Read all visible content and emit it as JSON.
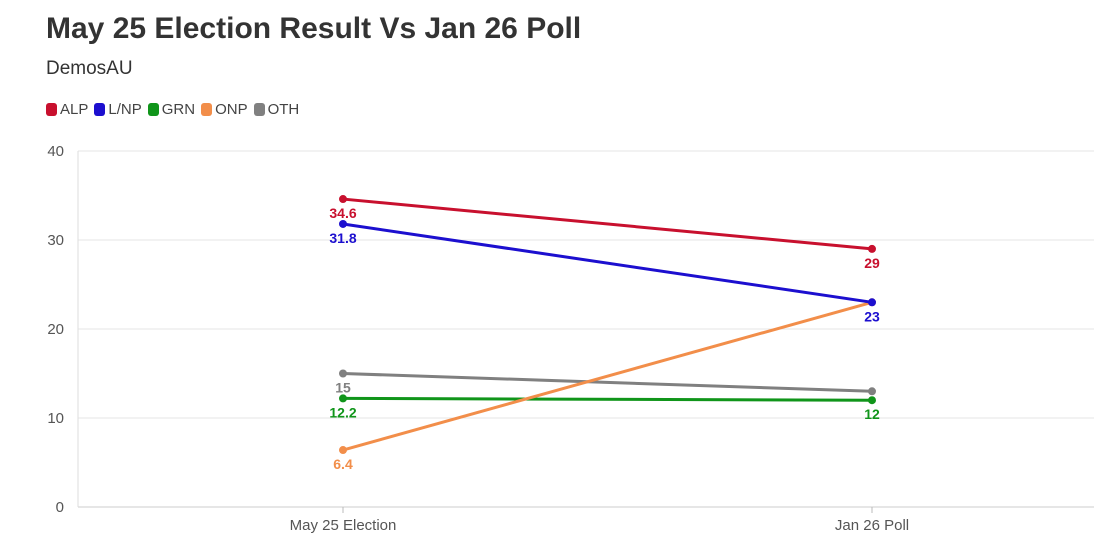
{
  "header": {
    "title": "May 25 Election Result Vs Jan 26 Poll",
    "subtitle": "DemosAU"
  },
  "chart_data": {
    "type": "line",
    "title": "May 25 Election Result Vs Jan 26 Poll",
    "subtitle": "DemosAU",
    "categories": [
      "May 25 Election",
      "Jan 26 Poll"
    ],
    "xlabel": "",
    "ylabel": "",
    "ylim": [
      0,
      40
    ],
    "yticks": [
      0,
      10,
      20,
      30,
      40
    ],
    "grid": true,
    "legend_position": "top-left",
    "series": [
      {
        "name": "ALP",
        "color": "#c8102e",
        "values": [
          34.6,
          29
        ],
        "labels": [
          "34.6",
          "29"
        ],
        "label_pos": [
          "below",
          "below"
        ]
      },
      {
        "name": "L/NP",
        "color": "#1c0fcf",
        "values": [
          31.8,
          23
        ],
        "labels": [
          "31.8",
          "23"
        ],
        "label_pos": [
          "below",
          "below"
        ]
      },
      {
        "name": "GRN",
        "color": "#10951a",
        "values": [
          12.2,
          12
        ],
        "labels": [
          "12.2",
          "12"
        ],
        "label_pos": [
          "below",
          "below"
        ]
      },
      {
        "name": "ONP",
        "color": "#f28e4a",
        "values": [
          6.4,
          23
        ],
        "labels": [
          "6.4",
          ""
        ],
        "label_pos": [
          "below",
          "below"
        ]
      },
      {
        "name": "OTH",
        "color": "#808080",
        "values": [
          15,
          13
        ],
        "labels": [
          "15",
          ""
        ],
        "label_pos": [
          "below",
          "below"
        ]
      }
    ]
  }
}
